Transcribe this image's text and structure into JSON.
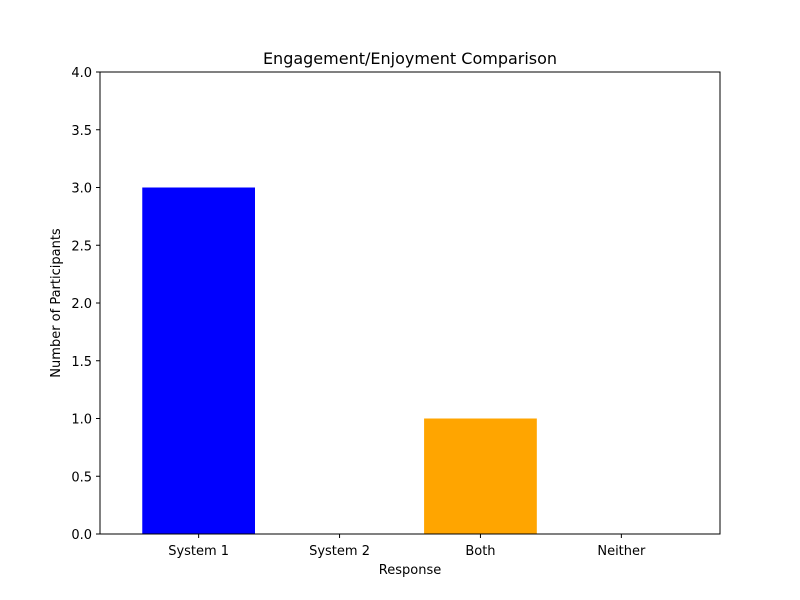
{
  "chart_data": {
    "type": "bar",
    "title": "Engagement/Enjoyment Comparison",
    "xlabel": "Response",
    "ylabel": "Number of Participants",
    "categories": [
      "System 1",
      "System 2",
      "Both",
      "Neither"
    ],
    "values": [
      3,
      0,
      1,
      0
    ],
    "colors": [
      "#0000ff",
      "#008000",
      "#ffa500",
      "#ff0000"
    ],
    "ylim": [
      0,
      4
    ],
    "yticks": [
      "0.0",
      "0.5",
      "1.0",
      "1.5",
      "2.0",
      "2.5",
      "3.0",
      "3.5",
      "4.0"
    ],
    "grid": false,
    "legend": "none"
  }
}
